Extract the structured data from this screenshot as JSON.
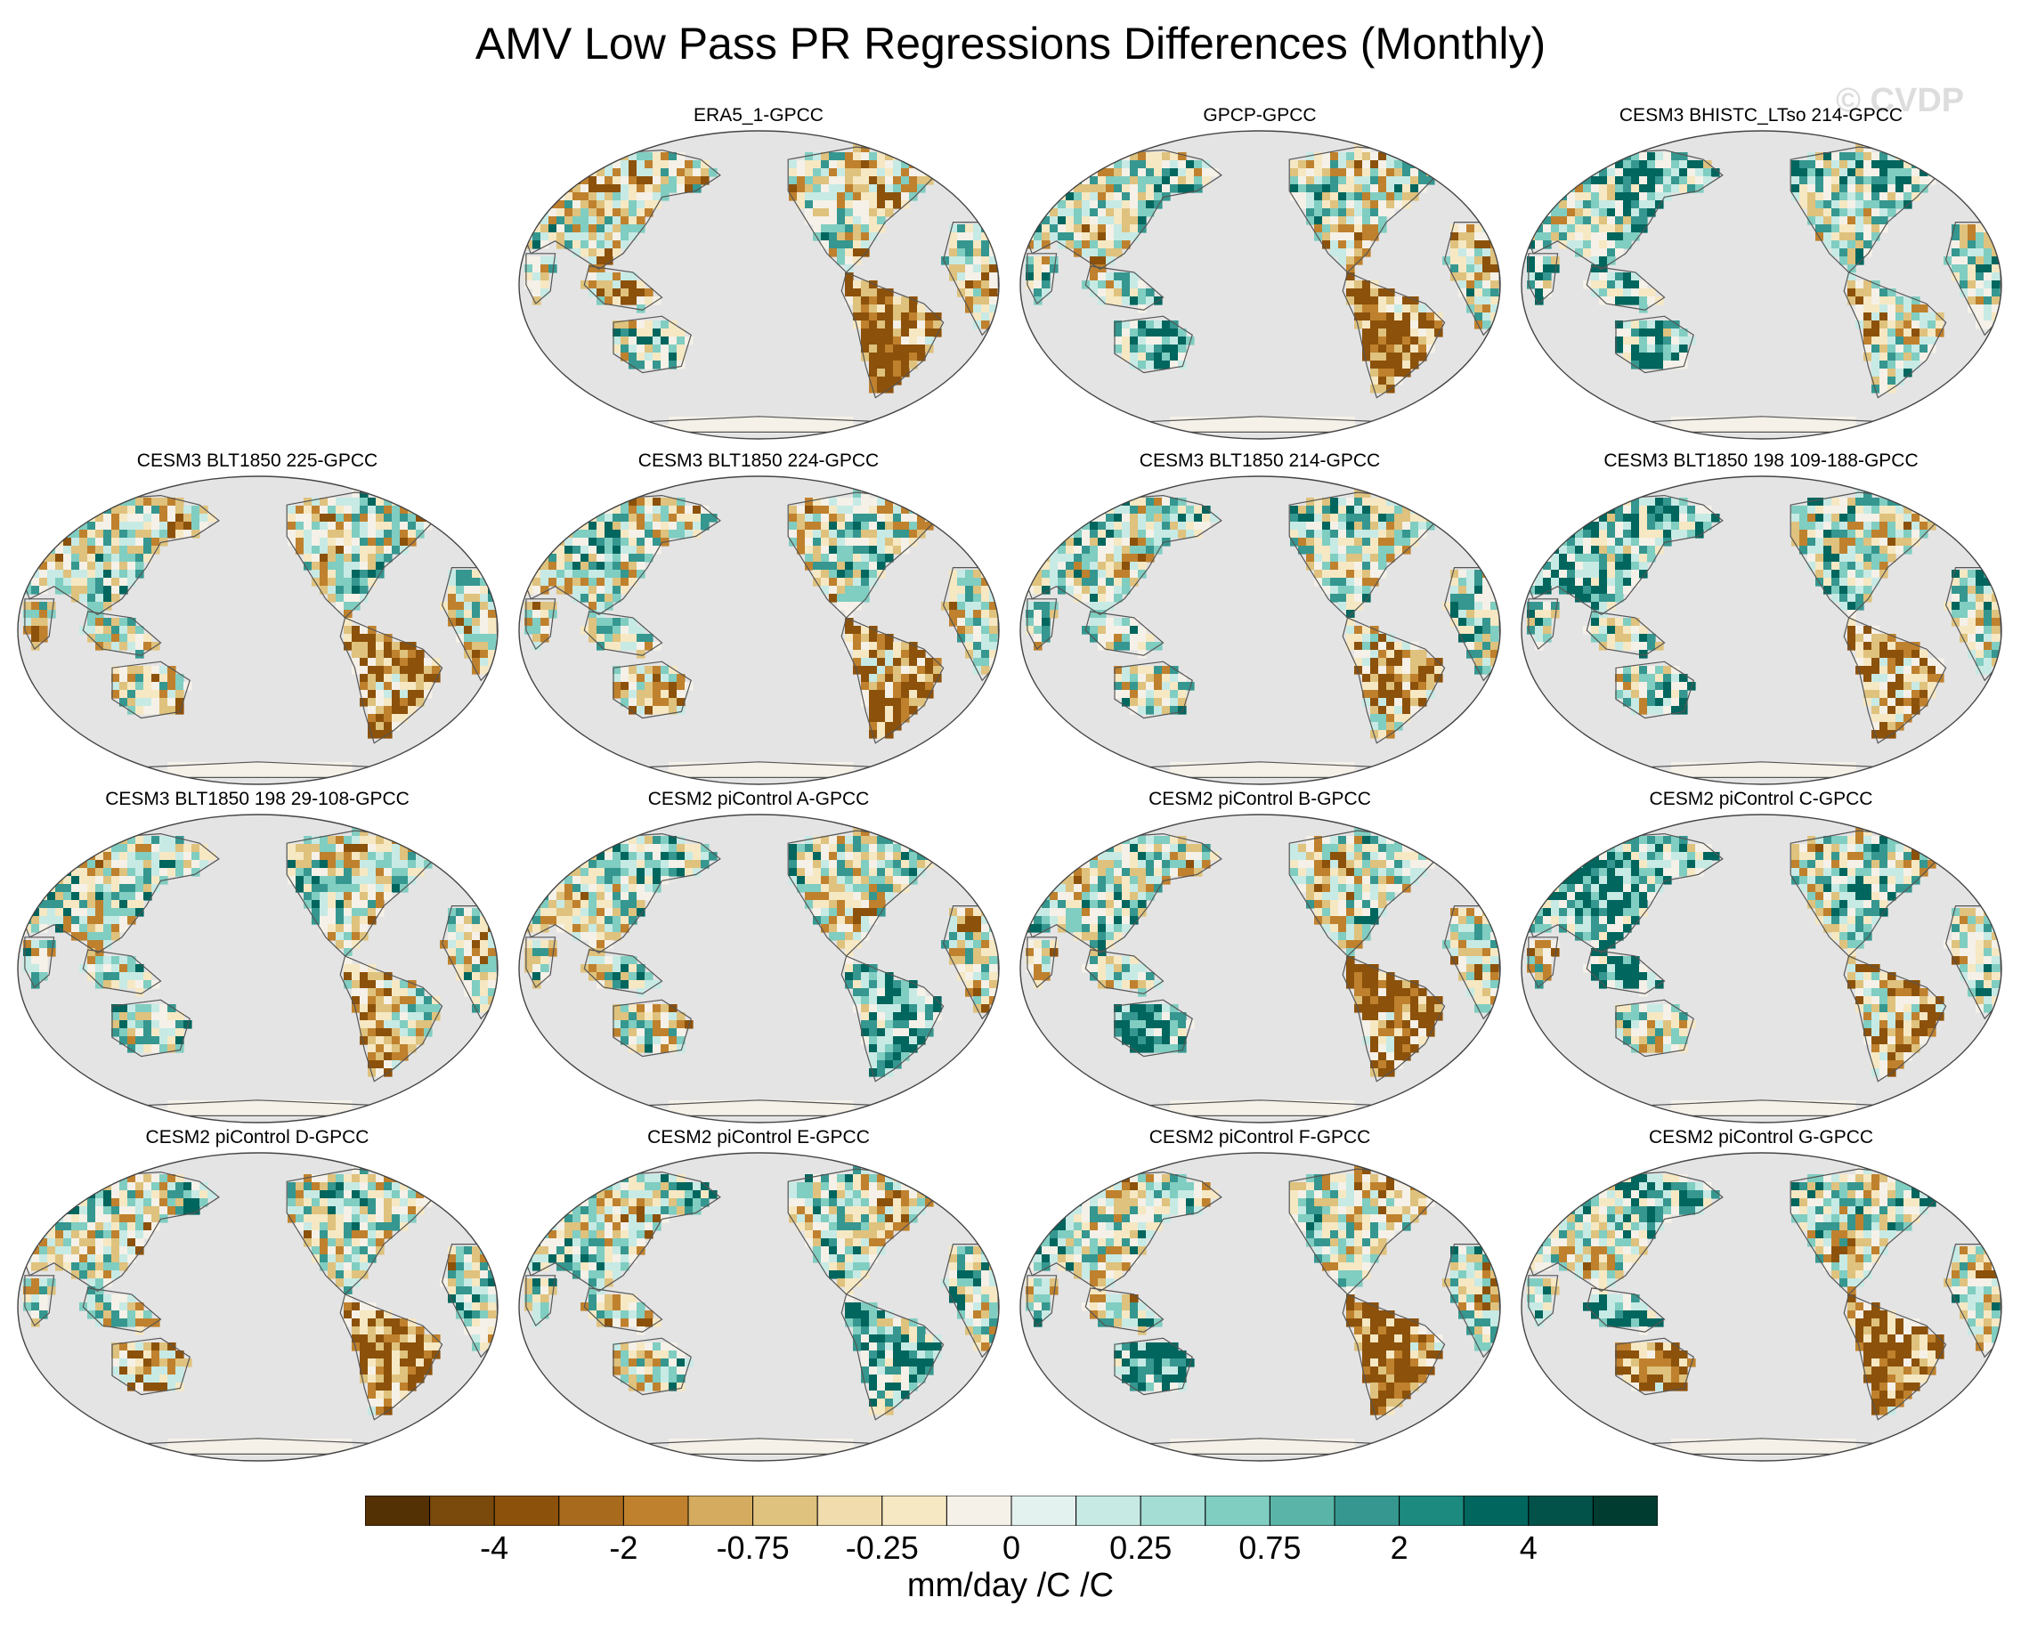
{
  "title": "AMV Low Pass PR Regressions Differences (Monthly)",
  "watermark": "© CVDP",
  "panels": [
    {
      "title": "ERA5_1-GPCC",
      "pattern": "mixed-dry-tropics"
    },
    {
      "title": "GPCP-GPCC",
      "pattern": "dry-amazon-wet-australia"
    },
    {
      "title": "CESM3 BHISTC_LTso 214-GPCC",
      "pattern": "mostly-wet"
    },
    {
      "title": "CESM3 BLT1850 225-GPCC",
      "pattern": "dry-amazon"
    },
    {
      "title": "CESM3 BLT1850 224-GPCC",
      "pattern": "dry-amazon"
    },
    {
      "title": "CESM3 BLT1850 214-GPCC",
      "pattern": "mixed"
    },
    {
      "title": "CESM3 BLT1850 198 109-188-GPCC",
      "pattern": "wet-asia"
    },
    {
      "title": "CESM3 BLT1850 198 29-108-GPCC",
      "pattern": "mixed"
    },
    {
      "title": "CESM2 piControl A-GPCC",
      "pattern": "wet-amazon"
    },
    {
      "title": "CESM2 piControl B-GPCC",
      "pattern": "dry-amazon-wet-australia"
    },
    {
      "title": "CESM2 piControl C-GPCC",
      "pattern": "wet-asia"
    },
    {
      "title": "CESM2 piControl D-GPCC",
      "pattern": "dry-amazon"
    },
    {
      "title": "CESM2 piControl E-GPCC",
      "pattern": "wet-amazon"
    },
    {
      "title": "CESM2 piControl F-GPCC",
      "pattern": "dry-amazon-wet-australia"
    },
    {
      "title": "CESM2 piControl G-GPCC",
      "pattern": "dry-amazon-dry-australia"
    }
  ],
  "colorbar": {
    "colors": [
      "#543005",
      "#7a4a0d",
      "#8c510a",
      "#a86b1e",
      "#bf812d",
      "#d4ab5f",
      "#dfc27d",
      "#f0dcac",
      "#f6e8c3",
      "#f5f1e8",
      "#e4f2ef",
      "#c7eae5",
      "#a3ddd4",
      "#80cdc1",
      "#5ab4a8",
      "#35978f",
      "#1d8a7f",
      "#01665e",
      "#02524a",
      "#003c30"
    ],
    "tick_labels": [
      "-4",
      "-2",
      "-0.75",
      "-0.25",
      "0",
      "0.25",
      "0.75",
      "2",
      "4"
    ],
    "tick_boundaries": [
      2,
      4,
      6,
      8,
      10,
      12,
      14,
      16,
      18
    ],
    "units": "mm/day /C /C"
  },
  "map": {
    "ocean_color": "#e4e4e4",
    "outline_color": "#555555",
    "land_colors": [
      "#8c510a",
      "#bf812d",
      "#dfc27d",
      "#f6e8c3",
      "#f5f1e8",
      "#c7eae5",
      "#80cdc1",
      "#35978f",
      "#01665e"
    ]
  }
}
